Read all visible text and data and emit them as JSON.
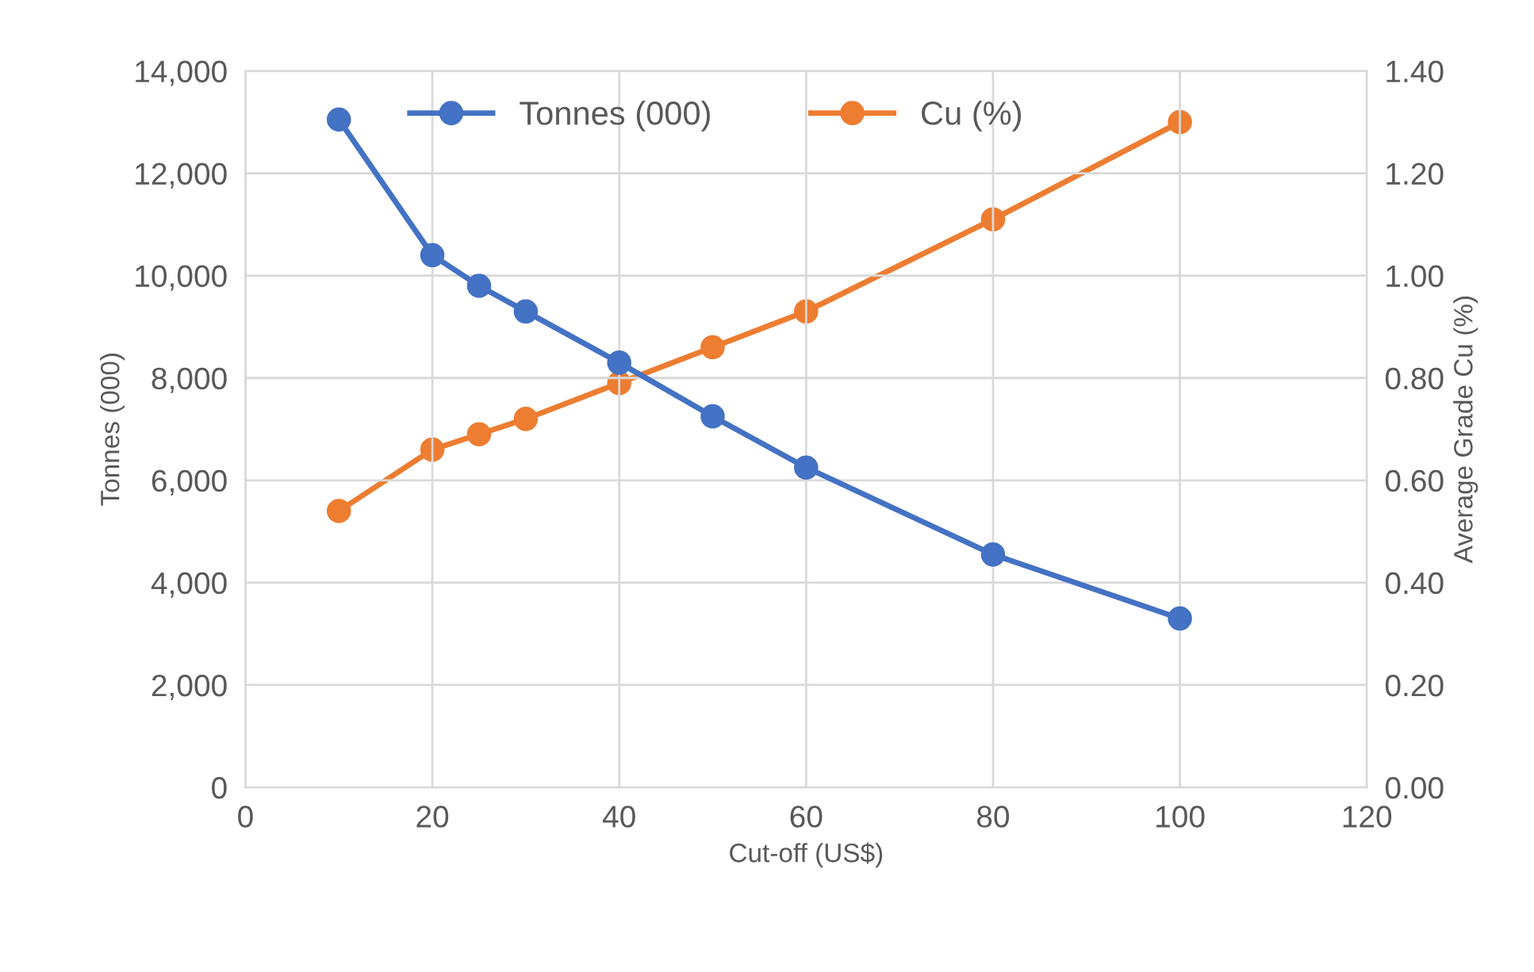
{
  "chart_data": {
    "type": "line",
    "xlabel": "Cut-off (US$)",
    "ylabel": "Tonnes (000)",
    "y2label": "Average Grade Cu (%)",
    "x": [
      10,
      20,
      25,
      30,
      40,
      50,
      60,
      80,
      100
    ],
    "series": [
      {
        "name": "Tonnes (000)",
        "color": "#4472c4",
        "values": [
          13050,
          10400,
          9800,
          9300,
          8300,
          7250,
          6250,
          4550,
          3300
        ]
      },
      {
        "name": "Cu (%)",
        "color": "#ed7d31",
        "axis": "y2",
        "values": [
          0.54,
          0.66,
          0.69,
          0.72,
          0.79,
          0.86,
          0.93,
          1.11,
          1.3
        ]
      }
    ],
    "xlim": [
      0,
      120
    ],
    "xticks": [
      0,
      20,
      40,
      60,
      80,
      100,
      120
    ],
    "ylim": [
      0,
      14000
    ],
    "yticks": [
      {
        "value": 0,
        "label": "0"
      },
      {
        "value": 2000,
        "label": "2,000"
      },
      {
        "value": 4000,
        "label": "4,000"
      },
      {
        "value": 6000,
        "label": "6,000"
      },
      {
        "value": 8000,
        "label": "8,000"
      },
      {
        "value": 10000,
        "label": "10,000"
      },
      {
        "value": 12000,
        "label": "12,000"
      },
      {
        "value": 14000,
        "label": "14,000"
      }
    ],
    "y2lim": [
      0,
      1.4
    ],
    "y2ticks": [
      {
        "value": 0,
        "label": "0.00"
      },
      {
        "value": 0.2,
        "label": "0.20"
      },
      {
        "value": 0.4,
        "label": "0.40"
      },
      {
        "value": 0.6,
        "label": "0.60"
      },
      {
        "value": 0.8,
        "label": "0.80"
      },
      {
        "value": 1.0,
        "label": "1.00"
      },
      {
        "value": 1.2,
        "label": "1.20"
      },
      {
        "value": 1.4,
        "label": "1.40"
      }
    ],
    "grid": true,
    "legend": "top",
    "marker": "circle",
    "line_style": "solid"
  }
}
